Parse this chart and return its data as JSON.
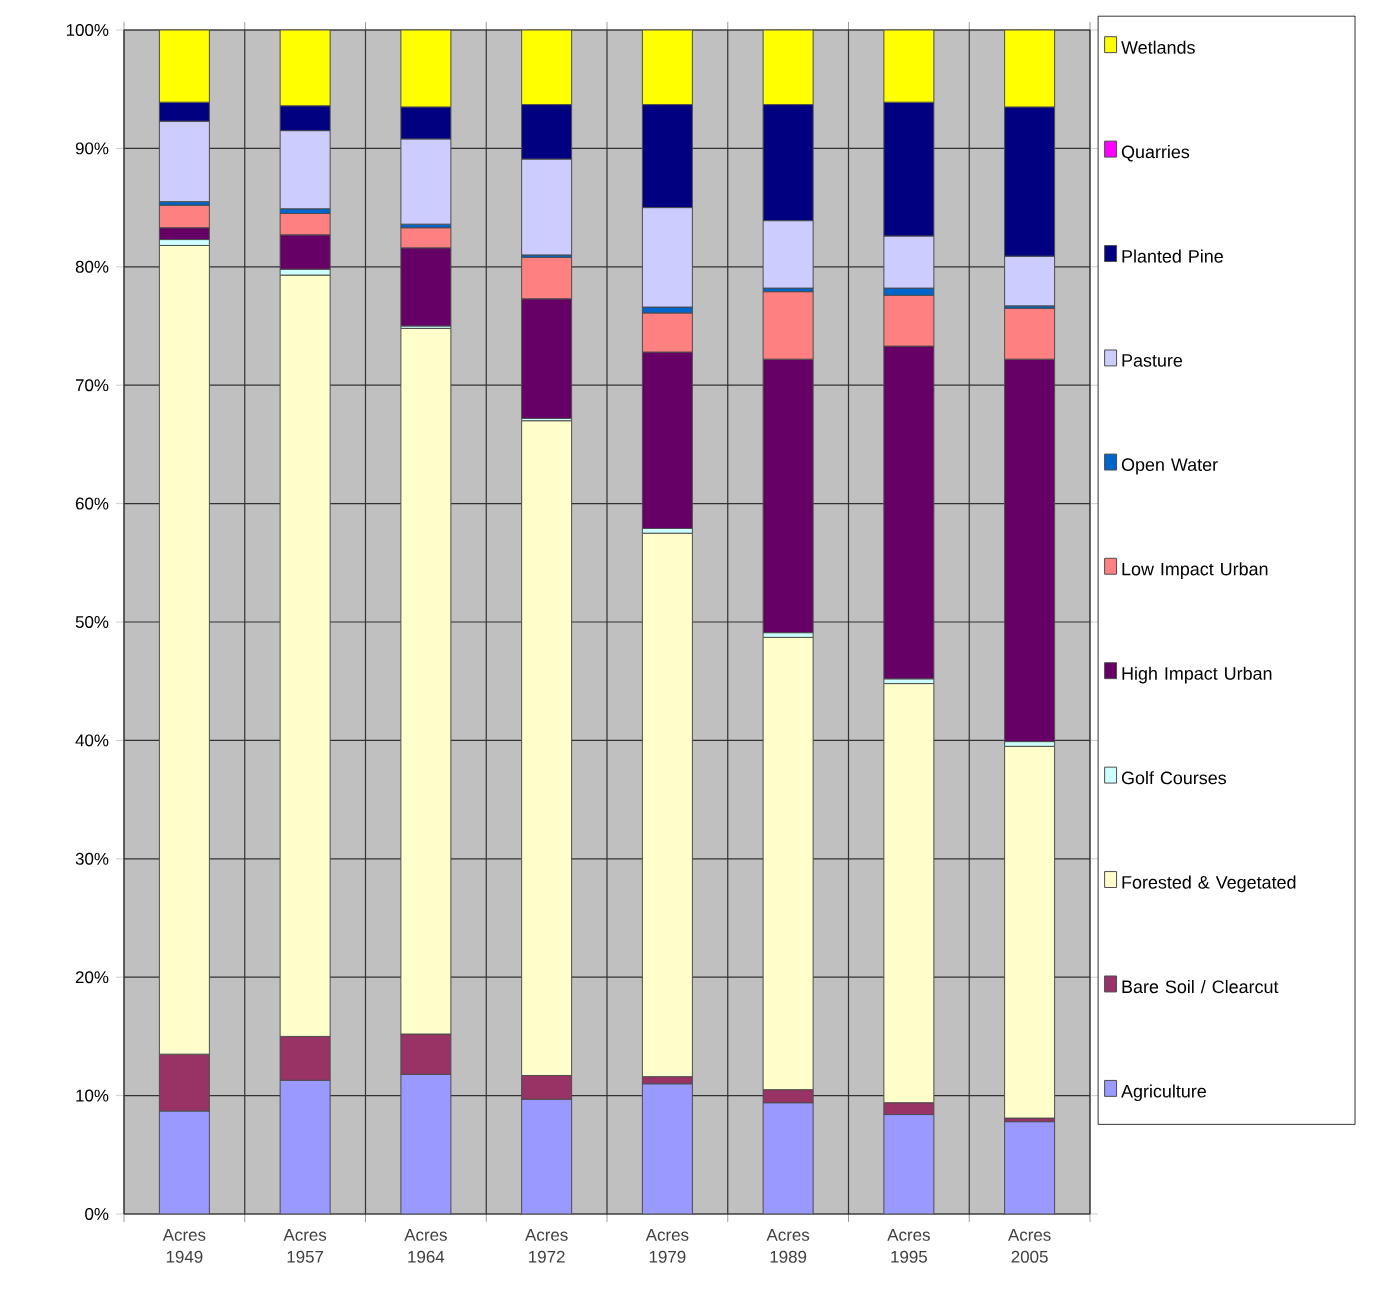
{
  "chart_data": {
    "type": "bar",
    "stacked": true,
    "categories": [
      "Acres 1949",
      "Acres 1957",
      "Acres 1964",
      "Acres 1972",
      "Acres 1979",
      "Acres 1989",
      "Acres 1995",
      "Acres 2005"
    ],
    "series": [
      {
        "name": "Agriculture",
        "color": "#9999ff",
        "values": [
          8.7,
          11.3,
          11.8,
          9.7,
          11.0,
          9.4,
          8.4,
          7.8
        ]
      },
      {
        "name": "Bare Soil / Clearcut",
        "color": "#993366",
        "values": [
          4.8,
          3.7,
          3.4,
          2.0,
          0.6,
          1.1,
          1.0,
          0.3
        ]
      },
      {
        "name": "Forested & Vegetated",
        "color": "#ffffcc",
        "values": [
          68.3,
          64.3,
          59.6,
          55.3,
          45.9,
          38.2,
          35.4,
          31.4
        ]
      },
      {
        "name": "Golf Courses",
        "color": "#ccffff",
        "values": [
          0.5,
          0.5,
          0.2,
          0.2,
          0.4,
          0.4,
          0.4,
          0.4
        ]
      },
      {
        "name": "High Impact Urban",
        "color": "#660066",
        "values": [
          1.0,
          2.9,
          6.6,
          10.1,
          14.9,
          23.1,
          28.1,
          32.3
        ]
      },
      {
        "name": "Low Impact Urban",
        "color": "#ff8080",
        "values": [
          1.9,
          1.8,
          1.7,
          3.5,
          3.3,
          5.7,
          4.3,
          4.3
        ]
      },
      {
        "name": "Open Water",
        "color": "#0066cc",
        "values": [
          0.3,
          0.4,
          0.3,
          0.2,
          0.5,
          0.3,
          0.6,
          0.2
        ]
      },
      {
        "name": "Pasture",
        "color": "#ccccff",
        "values": [
          6.8,
          6.6,
          7.2,
          8.1,
          8.4,
          5.7,
          4.4,
          4.2
        ]
      },
      {
        "name": "Planted Pine",
        "color": "#000080",
        "values": [
          1.6,
          2.1,
          2.7,
          4.6,
          8.7,
          9.8,
          11.3,
          12.6
        ]
      },
      {
        "name": "Quarries",
        "color": "#ff00ff",
        "values": [
          0,
          0,
          0,
          0,
          0,
          0,
          0,
          0
        ]
      },
      {
        "name": "Wetlands",
        "color": "#ffff00",
        "values": [
          6.1,
          6.4,
          6.5,
          6.3,
          6.3,
          6.3,
          6.1,
          6.5
        ]
      }
    ],
    "ylim": [
      0,
      100
    ],
    "yticks": [
      {
        "value": 0,
        "label": "0%"
      },
      {
        "value": 10,
        "label": "10%"
      },
      {
        "value": 20,
        "label": "20%"
      },
      {
        "value": 30,
        "label": "30%"
      },
      {
        "value": 40,
        "label": "40%"
      },
      {
        "value": 50,
        "label": "50%"
      },
      {
        "value": 60,
        "label": "60%"
      },
      {
        "value": 70,
        "label": "70%"
      },
      {
        "value": 80,
        "label": "80%"
      },
      {
        "value": 90,
        "label": "90%"
      },
      {
        "value": 100,
        "label": "100%"
      }
    ],
    "grid": true,
    "legend": "right"
  }
}
